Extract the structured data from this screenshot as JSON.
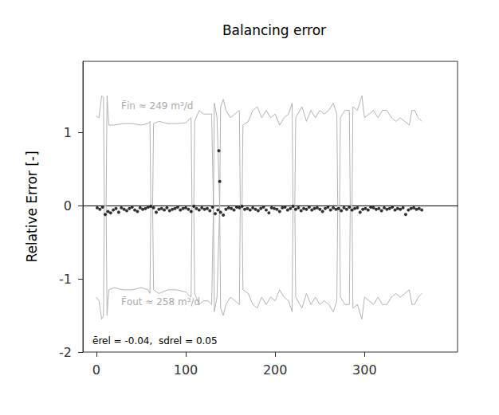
{
  "chart_data": {
    "type": "scatter",
    "title": "Balancing error",
    "y_label": "Relative Error [-]",
    "annotations": [
      "F̄in ≈ 249 m³/d",
      "F̄out ≈ 258 m³/d",
      "ērel = -0.04,  sdrel = 0.05"
    ],
    "xlim": [
      -15,
      404
    ],
    "xticks": [
      0,
      100,
      200,
      300
    ],
    "ylim": [
      -2,
      1.97
    ],
    "yticks": [
      -2,
      -1,
      0,
      1
    ],
    "grid": false,
    "series": [
      {
        "type": "line",
        "color": "#b3b3b3",
        "line_style": "solid",
        "x": [
          0,
          3,
          6,
          8,
          9,
          11,
          12,
          14,
          20,
          30,
          40,
          50,
          58,
          60,
          61,
          63,
          64,
          70,
          80,
          90,
          100,
          106,
          107,
          109,
          110,
          115,
          120,
          125,
          129,
          131,
          132,
          135,
          138,
          139,
          142,
          145,
          150,
          155,
          160,
          161,
          163,
          164,
          170,
          175,
          180,
          185,
          190,
          195,
          200,
          205,
          210,
          215,
          219,
          220,
          222,
          223,
          230,
          235,
          240,
          245,
          250,
          255,
          260,
          265,
          269,
          270,
          272,
          273,
          278,
          283,
          284,
          286,
          287,
          292,
          297,
          300,
          305,
          310,
          315,
          320,
          325,
          330,
          335,
          340,
          345,
          350,
          353,
          356,
          360,
          364
        ],
        "values": [
          1.22,
          1.2,
          1.5,
          1.48,
          0,
          0,
          1.5,
          1.1,
          1.1,
          1.12,
          1.12,
          1.1,
          1.12,
          1.15,
          0,
          0,
          1.12,
          1.15,
          1.12,
          1.12,
          1.13,
          1.2,
          0,
          0,
          1.15,
          1.3,
          1.25,
          1.25,
          1.25,
          0,
          1.4,
          1.2,
          0,
          1.35,
          1.45,
          1.3,
          1.2,
          1.25,
          1.3,
          0,
          0,
          1.1,
          1.15,
          1.3,
          1.35,
          1.2,
          1.3,
          1.2,
          1.25,
          1.1,
          1.2,
          1.25,
          1.4,
          0,
          0,
          1.2,
          1.35,
          1.15,
          1.3,
          1.2,
          1.3,
          1.25,
          1.3,
          1.4,
          1.25,
          0,
          0,
          1.2,
          1.3,
          1.3,
          0,
          0,
          1.35,
          1.3,
          1.5,
          1.2,
          1.25,
          1.3,
          1.2,
          1.3,
          1.3,
          1.2,
          1.15,
          1.2,
          1.15,
          1.1,
          1.3,
          1.3,
          1.2,
          1.15
        ]
      },
      {
        "type": "line",
        "color": "#b3b3b3",
        "line_style": "solid",
        "x": [
          0,
          3,
          6,
          8,
          9,
          11,
          12,
          14,
          20,
          30,
          40,
          50,
          58,
          60,
          61,
          63,
          64,
          70,
          80,
          90,
          100,
          106,
          107,
          109,
          110,
          115,
          120,
          125,
          129,
          131,
          132,
          135,
          138,
          139,
          142,
          145,
          150,
          155,
          160,
          161,
          163,
          164,
          170,
          175,
          180,
          185,
          190,
          195,
          200,
          205,
          210,
          215,
          219,
          220,
          222,
          223,
          230,
          235,
          240,
          245,
          250,
          255,
          260,
          265,
          269,
          270,
          272,
          273,
          278,
          283,
          284,
          286,
          287,
          292,
          297,
          300,
          305,
          310,
          315,
          320,
          325,
          330,
          335,
          340,
          345,
          350,
          353,
          356,
          360,
          364
        ],
        "values": [
          -1.25,
          -1.3,
          -1.55,
          -1.5,
          0,
          0,
          -1.5,
          -1.15,
          -1.12,
          -1.15,
          -1.15,
          -1.12,
          -1.15,
          -1.2,
          0,
          0,
          -1.15,
          -1.2,
          -1.15,
          -1.15,
          -1.18,
          -1.25,
          0,
          0,
          -1.2,
          -1.35,
          -1.3,
          -1.3,
          -1.35,
          0,
          -1.45,
          -1.25,
          0,
          -1.4,
          -1.5,
          -1.35,
          -1.25,
          -1.3,
          -1.35,
          0,
          0,
          -1.15,
          -1.2,
          -1.35,
          -1.4,
          -1.25,
          -1.35,
          -1.25,
          -1.3,
          -1.15,
          -1.25,
          -1.3,
          -1.45,
          0,
          0,
          -1.25,
          -1.4,
          -1.2,
          -1.35,
          -1.25,
          -1.35,
          -1.3,
          -1.35,
          -1.45,
          -1.3,
          0,
          0,
          -1.25,
          -1.35,
          -1.35,
          0,
          0,
          -1.4,
          -1.35,
          -1.55,
          -1.25,
          -1.3,
          -1.35,
          -1.25,
          -1.35,
          -1.35,
          -1.25,
          -1.2,
          -1.25,
          -1.2,
          -1.15,
          -1.35,
          -1.35,
          -1.25,
          -1.2
        ]
      },
      {
        "type": "scatter",
        "color": "#000000",
        "marker": "circle",
        "x": [
          1,
          4,
          7,
          10,
          13,
          16,
          19,
          22,
          25,
          28,
          31,
          34,
          37,
          40,
          43,
          46,
          49,
          52,
          55,
          58,
          61,
          64,
          67,
          70,
          73,
          76,
          79,
          82,
          85,
          88,
          91,
          94,
          97,
          100,
          103,
          106,
          109,
          112,
          115,
          118,
          121,
          124,
          127,
          130,
          133,
          136,
          139,
          142,
          145,
          148,
          151,
          154,
          157,
          160,
          163,
          166,
          169,
          172,
          175,
          178,
          181,
          184,
          187,
          190,
          193,
          196,
          199,
          202,
          205,
          208,
          211,
          214,
          217,
          220,
          223,
          226,
          229,
          232,
          235,
          238,
          241,
          244,
          247,
          250,
          253,
          256,
          259,
          262,
          265,
          268,
          271,
          274,
          277,
          280,
          283,
          286,
          289,
          292,
          295,
          298,
          301,
          304,
          307,
          310,
          313,
          316,
          319,
          322,
          325,
          328,
          331,
          334,
          337,
          340,
          343,
          346,
          349,
          352,
          355,
          358,
          361,
          364,
          137,
          138
        ],
        "values": [
          -0.03,
          -0.05,
          -0.02,
          -0.12,
          -0.08,
          -0.1,
          -0.06,
          -0.04,
          -0.09,
          -0.03,
          -0.05,
          -0.07,
          -0.04,
          -0.02,
          -0.06,
          -0.08,
          -0.03,
          -0.05,
          -0.04,
          -0.02,
          -0.01,
          -0.03,
          -0.09,
          -0.05,
          -0.04,
          -0.06,
          -0.03,
          -0.07,
          -0.05,
          -0.04,
          -0.02,
          -0.06,
          -0.04,
          -0.03,
          -0.05,
          -0.08,
          -0.01,
          -0.04,
          -0.06,
          -0.03,
          -0.05,
          -0.04,
          -0.07,
          -0.02,
          -0.11,
          -0.06,
          -0.09,
          -0.13,
          -0.05,
          -0.03,
          -0.04,
          -0.06,
          -0.02,
          -0.03,
          -0.01,
          -0.05,
          -0.04,
          -0.06,
          -0.03,
          -0.05,
          -0.07,
          -0.04,
          -0.02,
          -0.06,
          -0.1,
          -0.03,
          -0.04,
          -0.05,
          -0.08,
          -0.03,
          -0.02,
          -0.06,
          -0.04,
          -0.01,
          -0.05,
          -0.03,
          -0.07,
          -0.04,
          -0.05,
          -0.02,
          -0.06,
          -0.04,
          -0.03,
          -0.05,
          -0.08,
          -0.04,
          -0.02,
          -0.06,
          -0.03,
          -0.05,
          -0.04,
          -0.07,
          -0.03,
          -0.05,
          -0.02,
          -0.06,
          -0.04,
          -0.03,
          -0.09,
          -0.05,
          -0.04,
          -0.06,
          -0.02,
          -0.03,
          -0.05,
          -0.04,
          -0.07,
          -0.03,
          -0.05,
          -0.04,
          -0.02,
          -0.06,
          -0.04,
          -0.05,
          -0.03,
          -0.12,
          -0.06,
          -0.04,
          -0.03,
          -0.05,
          -0.04,
          -0.06,
          0.75,
          0.33
        ]
      }
    ]
  }
}
